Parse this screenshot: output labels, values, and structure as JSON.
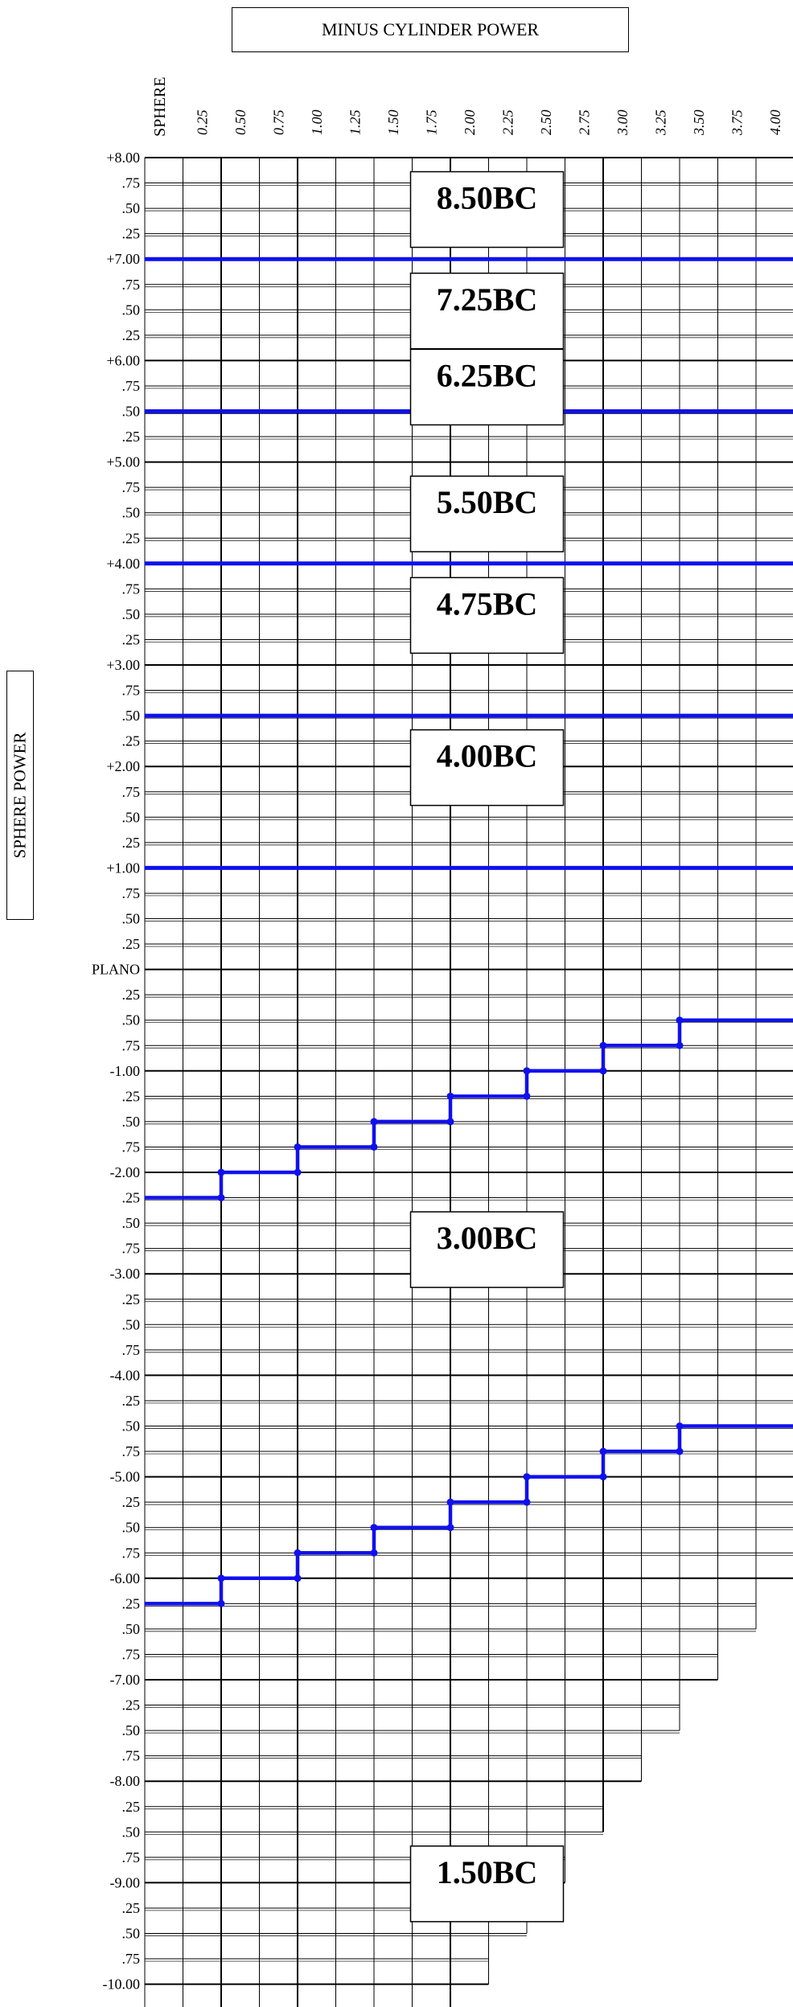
{
  "cylinder_title": "MINUS CYLINDER POWER",
  "sphere_title": "SPHERE POWER",
  "chart_data": {
    "type": "table",
    "column_header": "SPHERE",
    "columns": [
      "0.25",
      "0.50",
      "0.75",
      "1.00",
      "1.25",
      "1.50",
      "1.75",
      "2.00",
      "2.25",
      "2.50",
      "2.75",
      "3.00",
      "3.25",
      "3.50",
      "3.75",
      "4.00"
    ],
    "rows": [
      "+8.00",
      ".75",
      ".50",
      ".25",
      "+7.00",
      ".75",
      ".50",
      ".25",
      "+6.00",
      ".75",
      ".50",
      ".25",
      "+5.00",
      ".75",
      ".50",
      ".25",
      "+4.00",
      ".75",
      ".50",
      ".25",
      "+3.00",
      ".75",
      ".50",
      ".25",
      "+2.00",
      ".75",
      ".50",
      ".25",
      "+1.00",
      ".75",
      ".50",
      ".25",
      "PLANO",
      ".25",
      ".50",
      ".75",
      "-1.00",
      ".25",
      ".50",
      ".75",
      "-2.00",
      ".25",
      ".50",
      ".75",
      "-3.00",
      ".25",
      ".50",
      ".75",
      "-4.00",
      ".25",
      ".50",
      ".75",
      "-5.00",
      ".25",
      ".50",
      ".75",
      "-6.00",
      ".25",
      ".50",
      ".75",
      "-7.00",
      ".25",
      ".50",
      ".75",
      "-8.00",
      ".25",
      ".50",
      ".75",
      "-9.00",
      ".25",
      ".50",
      ".75",
      "-10.00"
    ],
    "base_curves": [
      {
        "label": "8.50BC",
        "zone_from": "+8.00",
        "zone_to": "+7.25"
      },
      {
        "label": "7.25BC",
        "zone_from": "+7.00",
        "zone_to": "+6.25"
      },
      {
        "label": "6.25BC",
        "zone_from": "+6.00",
        "zone_to": "+4.75"
      },
      {
        "label": "5.50BC",
        "zone_from": "+4.50",
        "zone_to": "+3.25"
      },
      {
        "label": "4.75BC",
        "zone_from": "+3.00",
        "zone_to": "+1.75"
      },
      {
        "label": "4.00BC",
        "zone_from": "+1.50",
        "zone_to": "-0.25"
      },
      {
        "label": "3.00BC",
        "zone_from": "-0.25",
        "zone_to": "-5.50"
      },
      {
        "label": "1.50BC",
        "zone_from": "-5.50",
        "zone_to": "-10.25"
      }
    ],
    "horizontal_dividers_below_row": [
      "+7.25",
      "+5.75",
      "+4.25",
      "+2.75",
      "+1.25"
    ],
    "stair_boundaries": [
      {
        "steps": [
          [
            "0.25",
            "-2.25"
          ],
          [
            "0.75",
            "-2.00"
          ],
          [
            "1.25",
            "-1.75"
          ],
          [
            "1.75",
            "-1.50"
          ],
          [
            "2.25",
            "-1.25"
          ],
          [
            "2.75",
            "-1.00"
          ],
          [
            "3.25",
            "-0.75"
          ],
          [
            "3.75",
            "-0.50"
          ]
        ]
      },
      {
        "steps": [
          [
            "0.25",
            "-6.25"
          ],
          [
            "0.75",
            "-6.00"
          ],
          [
            "1.25",
            "-5.75"
          ],
          [
            "1.75",
            "-5.50"
          ],
          [
            "2.25",
            "-5.25"
          ],
          [
            "2.75",
            "-5.00"
          ],
          [
            "3.25",
            "-4.75"
          ],
          [
            "3.75",
            "-4.50"
          ]
        ]
      }
    ],
    "line_color": "#1010ee",
    "grid_color": "#000000"
  }
}
